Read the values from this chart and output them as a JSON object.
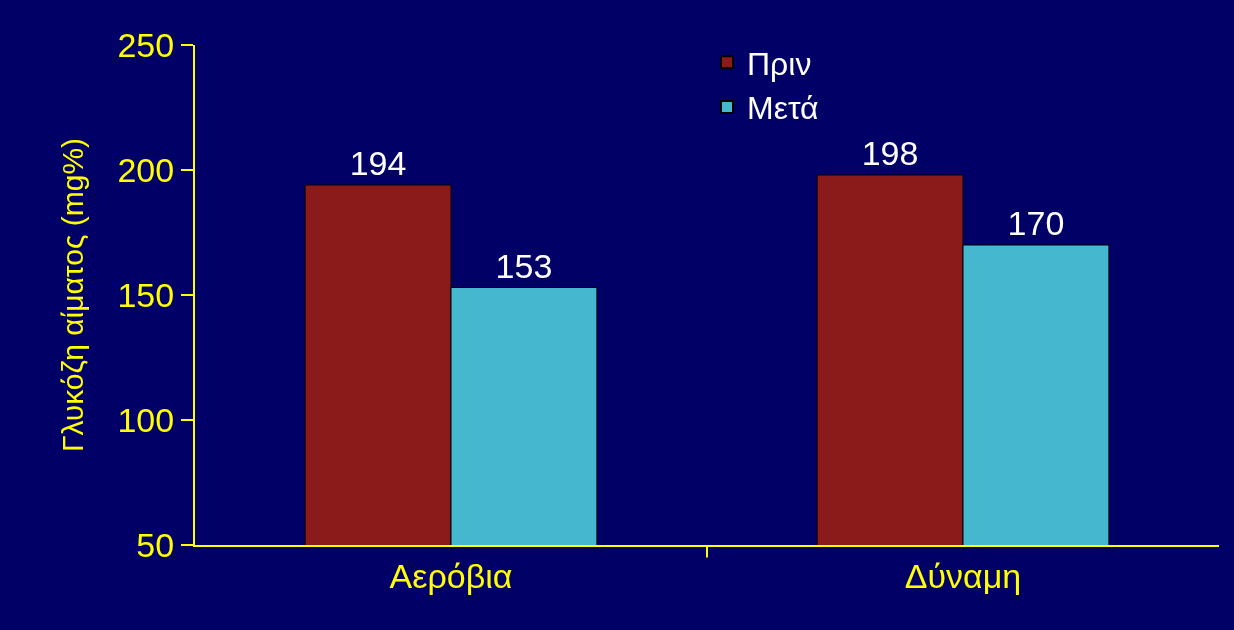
{
  "chart_data": {
    "type": "bar",
    "ylabel": "Γλυκόζη αίματος (mg%)",
    "categories": [
      "Αερόβια",
      "Δύναμη"
    ],
    "series": [
      {
        "name": "Πριν",
        "color": "#8b1a1a",
        "values": [
          194,
          198
        ]
      },
      {
        "name": "Μετά",
        "color": "#45b8d0",
        "values": [
          153,
          170
        ]
      }
    ],
    "ylim": [
      50,
      250
    ],
    "yticks": [
      50,
      100,
      150,
      200,
      250
    ],
    "grid": false,
    "legend": "top",
    "data_labels": true
  }
}
